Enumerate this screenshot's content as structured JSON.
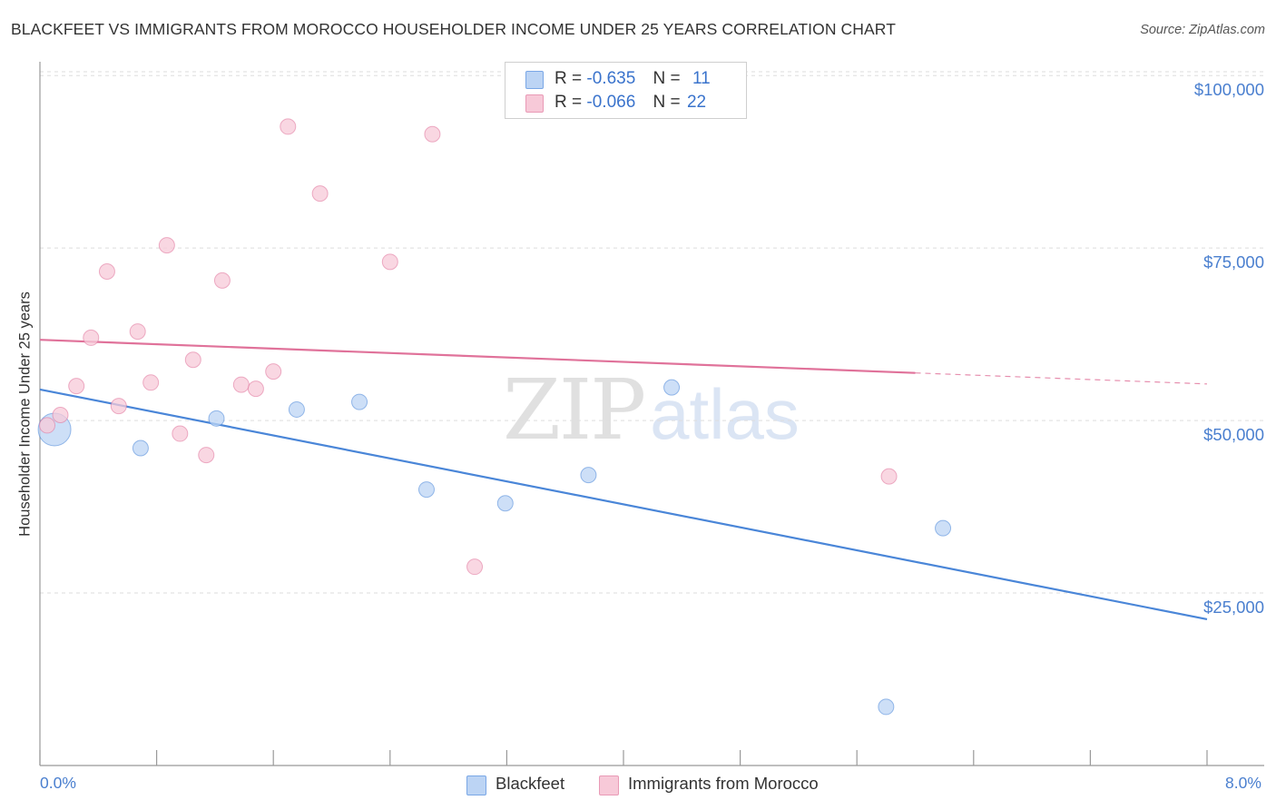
{
  "title": "BLACKFEET VS IMMIGRANTS FROM MOROCCO HOUSEHOLDER INCOME UNDER 25 YEARS CORRELATION CHART",
  "source": "Source: ZipAtlas.com",
  "watermark": {
    "zip": "ZIP",
    "atlas": "atlas"
  },
  "legend": {
    "r_label": "R =",
    "n_label": "N =",
    "rows": [
      {
        "r": "-0.635",
        "n": "11"
      },
      {
        "r": "-0.066",
        "n": "22"
      }
    ]
  },
  "chart_data": {
    "type": "scatter",
    "title": "BLACKFEET VS IMMIGRANTS FROM MOROCCO HOUSEHOLDER INCOME UNDER 25 YEARS CORRELATION CHART",
    "xlabel": "",
    "ylabel": "Householder Income Under 25 years",
    "xlim": [
      0,
      8.0
    ],
    "ylim": [
      0,
      102000
    ],
    "x_tick_labels": [
      "0.0%",
      "8.0%"
    ],
    "y_ticks": [
      {
        "value": 100000,
        "label": "$100,000"
      },
      {
        "value": 75000,
        "label": "$75,000"
      },
      {
        "value": 50000,
        "label": "$50,000"
      },
      {
        "value": 25000,
        "label": "$25,000"
      }
    ],
    "grid": true,
    "legend_position": "bottom-center",
    "series": [
      {
        "name": "Blackfeet",
        "color": "#4a86d8",
        "fill": "#bcd4f4",
        "r": -0.635,
        "n": 11,
        "points": [
          {
            "x": 0.1,
            "y": 48700,
            "large": true
          },
          {
            "x": 0.69,
            "y": 46000
          },
          {
            "x": 1.21,
            "y": 50300
          },
          {
            "x": 1.76,
            "y": 51600
          },
          {
            "x": 2.19,
            "y": 52700
          },
          {
            "x": 2.65,
            "y": 40000
          },
          {
            "x": 3.19,
            "y": 38000
          },
          {
            "x": 3.76,
            "y": 42100
          },
          {
            "x": 4.33,
            "y": 54800
          },
          {
            "x": 5.8,
            "y": 8500
          },
          {
            "x": 6.19,
            "y": 34400
          }
        ],
        "trend": {
          "x0": 0.0,
          "y0": 54500,
          "x1": 8.0,
          "y1": 21200,
          "dash_from": null
        }
      },
      {
        "name": "Immigrants from Morocco",
        "color": "#e0729a",
        "fill": "#f7c9d8",
        "r": -0.066,
        "n": 22,
        "points": [
          {
            "x": 0.05,
            "y": 49300
          },
          {
            "x": 0.14,
            "y": 50800
          },
          {
            "x": 0.25,
            "y": 55000
          },
          {
            "x": 0.35,
            "y": 62000
          },
          {
            "x": 0.46,
            "y": 71600
          },
          {
            "x": 0.54,
            "y": 52100
          },
          {
            "x": 0.67,
            "y": 62900
          },
          {
            "x": 0.76,
            "y": 55500
          },
          {
            "x": 0.87,
            "y": 75400
          },
          {
            "x": 0.96,
            "y": 48100
          },
          {
            "x": 1.05,
            "y": 58800
          },
          {
            "x": 1.14,
            "y": 45000
          },
          {
            "x": 1.25,
            "y": 70300
          },
          {
            "x": 1.38,
            "y": 55200
          },
          {
            "x": 1.48,
            "y": 54600
          },
          {
            "x": 1.6,
            "y": 57100
          },
          {
            "x": 1.7,
            "y": 92600
          },
          {
            "x": 1.92,
            "y": 82900
          },
          {
            "x": 2.4,
            "y": 73000
          },
          {
            "x": 2.69,
            "y": 91500
          },
          {
            "x": 2.98,
            "y": 28800
          },
          {
            "x": 5.82,
            "y": 41900
          }
        ],
        "trend": {
          "x0": 0.0,
          "y0": 61700,
          "x1": 8.0,
          "y1": 55300,
          "dash_from": 6.0
        }
      }
    ]
  }
}
